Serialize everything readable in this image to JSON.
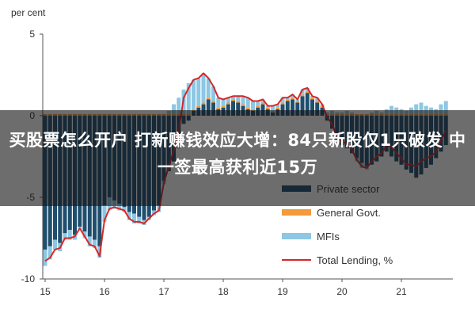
{
  "chart_data": {
    "type": "bar",
    "y_unit": "per cent",
    "ylim": [
      -10,
      5
    ],
    "y_ticks": [
      5,
      0,
      -5,
      -10
    ],
    "x_ticks": [
      "15",
      "16",
      "17",
      "18",
      "19",
      "20",
      "21"
    ],
    "grid": false,
    "legend_position": "bottom-right",
    "months": [
      "2015-01",
      "2015-02",
      "2015-03",
      "2015-04",
      "2015-05",
      "2015-06",
      "2015-07",
      "2015-08",
      "2015-09",
      "2015-10",
      "2015-11",
      "2015-12",
      "2016-01",
      "2016-02",
      "2016-03",
      "2016-04",
      "2016-05",
      "2016-06",
      "2016-07",
      "2016-08",
      "2016-09",
      "2016-10",
      "2016-11",
      "2016-12",
      "2017-01",
      "2017-02",
      "2017-03",
      "2017-04",
      "2017-05",
      "2017-06",
      "2017-07",
      "2017-08",
      "2017-09",
      "2017-10",
      "2017-11",
      "2017-12",
      "2018-01",
      "2018-02",
      "2018-03",
      "2018-04",
      "2018-05",
      "2018-06",
      "2018-07",
      "2018-08",
      "2018-09",
      "2018-10",
      "2018-11",
      "2018-12",
      "2019-01",
      "2019-02",
      "2019-03",
      "2019-04",
      "2019-05",
      "2019-06",
      "2019-07",
      "2019-08",
      "2019-09",
      "2019-10",
      "2019-11",
      "2019-12",
      "2020-01",
      "2020-02",
      "2020-03",
      "2020-04",
      "2020-05",
      "2020-06",
      "2020-07",
      "2020-08",
      "2020-09",
      "2020-10",
      "2020-11",
      "2020-12",
      "2021-01",
      "2021-02",
      "2021-03",
      "2021-04",
      "2021-05",
      "2021-06",
      "2021-07",
      "2021-08",
      "2021-09",
      "2021-10"
    ],
    "series": [
      {
        "name": "Private sector",
        "color": "#1f4e6e",
        "values": [
          -8.2,
          -8.0,
          -7.6,
          -7.8,
          -7.2,
          -7.0,
          -7.3,
          -6.8,
          -7.1,
          -7.4,
          -7.6,
          -8.0,
          -5.5,
          -5.0,
          -5.2,
          -5.4,
          -5.6,
          -5.9,
          -6.0,
          -6.2,
          -6.4,
          -6.2,
          -5.8,
          -5.5,
          -4.0,
          -3.4,
          -2.8,
          -2.0,
          -0.5,
          -0.3,
          0.3,
          0.5,
          0.7,
          1.0,
          0.8,
          0.4,
          0.5,
          0.7,
          0.9,
          0.8,
          0.6,
          0.4,
          0.3,
          0.5,
          0.7,
          0.4,
          0.2,
          0.4,
          0.7,
          0.9,
          1.0,
          0.8,
          1.2,
          1.4,
          1.0,
          0.8,
          0.5,
          -0.3,
          -0.8,
          -1.5,
          -1.8,
          -2.0,
          -2.3,
          -2.6,
          -2.9,
          -3.1,
          -3.0,
          -2.8,
          -2.5,
          -2.2,
          -2.5,
          -2.8,
          -3.0,
          -3.3,
          -3.5,
          -3.8,
          -3.6,
          -3.2,
          -3.0,
          -2.6,
          -2.2,
          -1.8
        ]
      },
      {
        "name": "General Govt.",
        "color": "#f39a3b",
        "values": [
          0.1,
          0.1,
          0.1,
          0.1,
          0.1,
          0.1,
          0.1,
          0.1,
          0.1,
          0.1,
          0.1,
          0.1,
          0.1,
          0.1,
          0.1,
          0.1,
          0.1,
          0.1,
          0.1,
          0.1,
          0.1,
          0.1,
          0.1,
          0.1,
          0.1,
          0.1,
          0.1,
          0.1,
          0.1,
          0.1,
          0.1,
          0.1,
          0.1,
          0.1,
          0.1,
          0.1,
          0.1,
          0.1,
          0.1,
          0.1,
          0.1,
          0.1,
          0.1,
          0.1,
          0.1,
          0.1,
          0.1,
          0.1,
          0.1,
          0.1,
          0.1,
          0.1,
          0.1,
          0.1,
          0.1,
          0.1,
          0.1,
          0.1,
          0.1,
          0.1,
          0.1,
          0.1,
          0.1,
          0.1,
          0.1,
          0.1,
          0.1,
          0.1,
          0.1,
          0.1,
          0.1,
          0.1,
          0.1,
          0.1,
          0.1,
          0.1,
          0.1,
          0.1,
          0.1,
          0.1,
          0.1,
          0.1
        ]
      },
      {
        "name": "MFIs",
        "color": "#8cc7e3",
        "values": [
          -1.0,
          -0.8,
          -0.6,
          -0.5,
          -0.4,
          -0.6,
          -0.3,
          -0.2,
          -0.4,
          -0.6,
          -0.5,
          -0.7,
          -1.0,
          -0.8,
          -0.5,
          -0.4,
          -0.3,
          -0.5,
          -0.6,
          -0.4,
          -0.3,
          -0.2,
          -0.3,
          -0.4,
          -0.2,
          0.2,
          0.6,
          1.0,
          1.5,
          1.9,
          1.8,
          1.7,
          1.8,
          1.2,
          0.9,
          0.6,
          0.4,
          0.3,
          0.2,
          0.3,
          0.5,
          0.6,
          0.5,
          0.3,
          0.2,
          0.1,
          0.3,
          0.2,
          0.3,
          0.1,
          0.2,
          0.1,
          0.3,
          0.2,
          0.1,
          0.2,
          0.1,
          0.1,
          0.2,
          0.1,
          0.1,
          0.2,
          0.1,
          -0.2,
          -0.3,
          -0.2,
          0.1,
          0.2,
          0.1,
          0.3,
          0.5,
          0.4,
          0.3,
          0.2,
          0.4,
          0.6,
          0.7,
          0.5,
          0.4,
          0.3,
          0.6,
          0.8
        ]
      },
      {
        "name": "Total Lending, %",
        "type": "line",
        "color": "#d62728",
        "values": [
          -8.9,
          -8.7,
          -8.2,
          -8.1,
          -7.5,
          -7.5,
          -7.4,
          -6.9,
          -7.4,
          -7.9,
          -8.0,
          -8.6,
          -6.4,
          -5.7,
          -5.6,
          -5.7,
          -5.8,
          -6.3,
          -6.5,
          -6.5,
          -6.6,
          -6.3,
          -6.0,
          -5.8,
          -4.1,
          -3.1,
          -2.1,
          -0.9,
          1.1,
          1.7,
          2.2,
          2.3,
          2.6,
          2.3,
          1.8,
          1.1,
          1.0,
          1.1,
          1.2,
          1.2,
          1.2,
          1.1,
          0.9,
          0.9,
          1.0,
          0.6,
          0.6,
          0.7,
          1.1,
          1.1,
          1.3,
          1.0,
          1.6,
          1.7,
          1.2,
          1.1,
          0.7,
          -0.1,
          -0.5,
          -1.3,
          -1.6,
          -1.7,
          -2.1,
          -2.7,
          -3.1,
          -3.2,
          -2.8,
          -2.5,
          -2.3,
          -1.8,
          -1.9,
          -2.3,
          -2.6,
          -3.0,
          -3.0,
          -3.1,
          -2.8,
          -2.6,
          -2.5,
          -2.2,
          -1.5,
          -0.9
        ]
      }
    ]
  },
  "overlay": {
    "headline": "买股票怎么开户 打新赚钱效应大增：84只新股仅1只破发 中一签最高获利近15万"
  },
  "colors": {
    "axis": "#555555",
    "band": "#141414"
  }
}
